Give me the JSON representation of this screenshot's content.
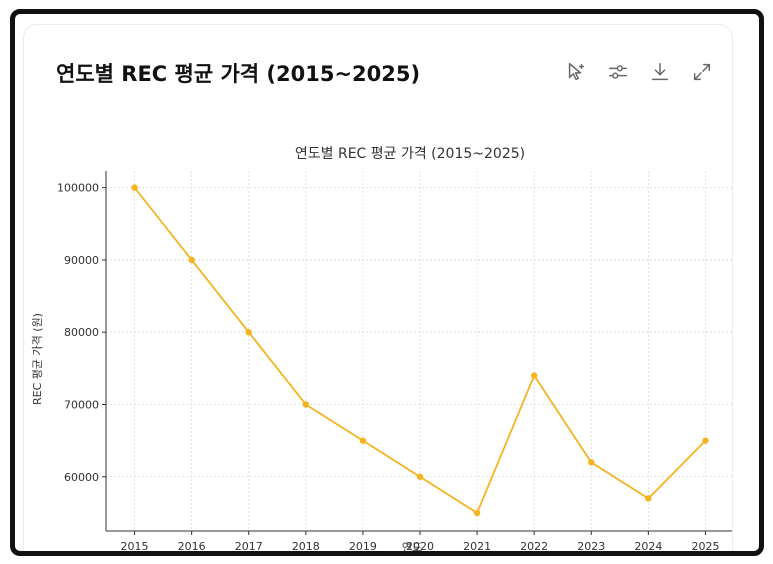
{
  "card": {
    "title": "연도별 REC 평균 가격 (2015~2025)"
  },
  "toolbar": {
    "items": [
      {
        "icon": "cursor-sparkle-icon"
      },
      {
        "icon": "sliders-icon"
      },
      {
        "icon": "download-icon"
      },
      {
        "icon": "expand-icon"
      }
    ]
  },
  "chart_data": {
    "type": "line",
    "title": "연도별 REC 평균 가격 (2015~2025)",
    "xlabel": "연도",
    "ylabel": "REC 평균 가격 (원)",
    "x": [
      2015,
      2016,
      2017,
      2018,
      2019,
      2020,
      2021,
      2022,
      2023,
      2024,
      2025
    ],
    "values": [
      100000,
      90000,
      80000,
      70000,
      65000,
      60000,
      55000,
      74000,
      62000,
      57000,
      65000
    ],
    "yticks": [
      60000,
      70000,
      80000,
      90000,
      100000
    ],
    "ylim": [
      52500,
      102300
    ],
    "grid": true,
    "color": "#f5b320"
  }
}
